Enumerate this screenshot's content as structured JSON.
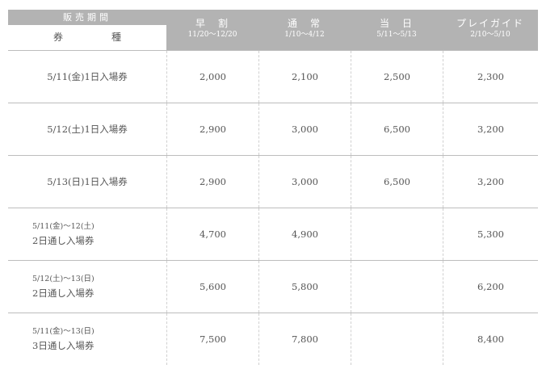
{
  "header": {
    "period_label": "販売期間",
    "ticket_type_label": [
      "券",
      "種"
    ],
    "columns": [
      {
        "title": "早　割",
        "dates": "11/20〜12/20"
      },
      {
        "title": "通　常",
        "dates": "1/10〜4/12"
      },
      {
        "title": "当　日",
        "dates": "5/11〜5/13"
      },
      {
        "title": "プレイガイド",
        "dates": "2/10〜5/10"
      }
    ]
  },
  "rows": [
    {
      "line1": "5/11(金)1日入場券",
      "line2": "",
      "prices": [
        "2,000",
        "2,100",
        "2,500",
        "2,300"
      ]
    },
    {
      "line1": "5/12(土)1日入場券",
      "line2": "",
      "prices": [
        "2,900",
        "3,000",
        "6,500",
        "3,200"
      ]
    },
    {
      "line1": "5/13(日)1日入場券",
      "line2": "",
      "prices": [
        "2,900",
        "3,000",
        "6,500",
        "3,200"
      ]
    },
    {
      "line1": "5/11(金)〜12(土)",
      "line2": "2日通し入場券",
      "prices": [
        "4,700",
        "4,900",
        "",
        "5,300"
      ]
    },
    {
      "line1": "5/12(土)〜13(日)",
      "line2": "2日通し入場券",
      "prices": [
        "5,600",
        "5,800",
        "",
        "6,200"
      ]
    },
    {
      "line1": "5/11(金)〜13(日)",
      "line2": "3日通し入場券",
      "prices": [
        "7,500",
        "7,800",
        "",
        "8,400"
      ]
    }
  ]
}
